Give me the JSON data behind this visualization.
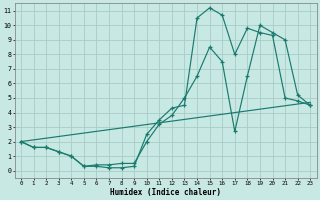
{
  "background_color": "#c8e8e4",
  "grid_color": "#a8ccc8",
  "line_color": "#1a7a6e",
  "xlabel": "Humidex (Indice chaleur)",
  "xlim": [
    -0.5,
    23.5
  ],
  "ylim": [
    -0.5,
    11.5
  ],
  "yticks": [
    0,
    1,
    2,
    3,
    4,
    5,
    6,
    7,
    8,
    9,
    10,
    11
  ],
  "xticks": [
    0,
    1,
    2,
    3,
    4,
    5,
    6,
    7,
    8,
    9,
    10,
    11,
    12,
    13,
    14,
    15,
    16,
    17,
    18,
    19,
    20,
    21,
    22,
    23
  ],
  "line1_x": [
    0,
    1,
    2,
    3,
    4,
    5,
    6,
    7,
    8,
    9,
    10,
    11,
    12,
    13,
    14,
    15,
    16,
    17,
    18,
    19,
    20,
    21,
    22,
    23
  ],
  "line1_y": [
    2.0,
    1.6,
    1.6,
    1.3,
    1.0,
    0.3,
    0.3,
    0.2,
    0.2,
    0.3,
    2.5,
    3.5,
    4.3,
    4.5,
    10.5,
    11.2,
    10.7,
    8.0,
    9.8,
    9.5,
    9.3,
    5.0,
    4.8,
    4.5
  ],
  "line2_x": [
    0,
    1,
    2,
    3,
    4,
    5,
    6,
    7,
    8,
    9,
    10,
    11,
    12,
    13,
    14,
    15,
    16,
    17,
    18,
    19,
    20,
    21,
    22,
    23
  ],
  "line2_y": [
    2.0,
    1.6,
    1.6,
    1.3,
    1.0,
    0.3,
    0.4,
    0.4,
    0.5,
    0.5,
    2.0,
    3.2,
    3.8,
    5.0,
    6.5,
    8.5,
    7.5,
    2.7,
    6.5,
    10.0,
    9.5,
    9.0,
    5.2,
    4.5
  ],
  "line3_x": [
    0,
    23
  ],
  "line3_y": [
    2.0,
    4.7
  ]
}
